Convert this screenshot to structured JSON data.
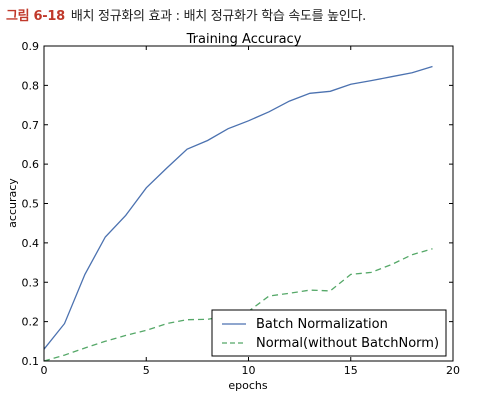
{
  "caption": {
    "figure_number": "그림 6-18",
    "text": "배치 정규화의 효과 : 배치 정규화가 학습 속도를 높인다."
  },
  "chart_data": {
    "type": "line",
    "title": "Training Accuracy",
    "xlabel": "epochs",
    "ylabel": "accuracy",
    "xlim": [
      0,
      20
    ],
    "ylim": [
      0.1,
      0.9
    ],
    "xticks": [
      0,
      5,
      10,
      15,
      20
    ],
    "yticks": [
      0.1,
      0.2,
      0.3,
      0.4,
      0.5,
      0.6,
      0.7,
      0.8,
      0.9
    ],
    "xtick_labels": [
      "0",
      "5",
      "10",
      "15",
      "20"
    ],
    "ytick_labels": [
      "0.1",
      "0.2",
      "0.3",
      "0.4",
      "0.5",
      "0.6",
      "0.7",
      "0.8",
      "0.9"
    ],
    "grid": false,
    "legend_position": "lower-right",
    "x": [
      0,
      1,
      2,
      3,
      4,
      5,
      6,
      7,
      8,
      9,
      10,
      11,
      12,
      13,
      14,
      15,
      16,
      17,
      18,
      19
    ],
    "series": [
      {
        "name": "Batch Normalization",
        "color": "#4c72b0",
        "style": "solid",
        "values": [
          0.13,
          0.195,
          0.32,
          0.415,
          0.47,
          0.54,
          0.59,
          0.638,
          0.66,
          0.69,
          0.71,
          0.733,
          0.76,
          0.78,
          0.785,
          0.803,
          0.812,
          0.822,
          0.832,
          0.848
        ]
      },
      {
        "name": "Normal(without BatchNorm)",
        "color": "#55a868",
        "style": "dashed",
        "values": [
          0.1,
          0.115,
          0.133,
          0.15,
          0.165,
          0.178,
          0.195,
          0.205,
          0.206,
          0.215,
          0.226,
          0.265,
          0.272,
          0.28,
          0.278,
          0.32,
          0.325,
          0.345,
          0.37,
          0.385
        ]
      }
    ]
  }
}
